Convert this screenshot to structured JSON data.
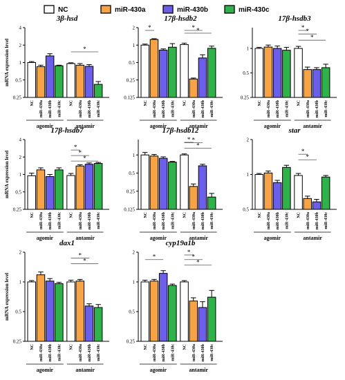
{
  "legend": [
    {
      "name": "NC",
      "color": "#ffffff"
    },
    {
      "name": "miR-430a",
      "color": "#f5a344"
    },
    {
      "name": "miR-430b",
      "color": "#6b5ee8"
    },
    {
      "name": "miR-430c",
      "color": "#2fb24a"
    }
  ],
  "chart_data": [
    {
      "type": "bar",
      "title": "3β-hsd",
      "ylabel": "mRNA expression level",
      "scale": "log2",
      "yticks": [
        "0.25",
        "0.5",
        "1",
        "2",
        "4"
      ],
      "ylim": [
        0.25,
        4
      ],
      "categories": [
        "NC",
        "miR-430a",
        "miR-430b",
        "miR-430c",
        "NC",
        "miR-430a",
        "miR-430b",
        "miR-430c"
      ],
      "groups": [
        "agomir",
        "antamir"
      ],
      "values": [
        1.0,
        0.85,
        1.3,
        0.88,
        0.96,
        0.9,
        0.86,
        0.42
      ],
      "errors": [
        0.04,
        0.05,
        0.12,
        0.02,
        0.03,
        0.06,
        0.06,
        0.05
      ],
      "significance": [
        "*"
      ]
    },
    {
      "type": "bar",
      "title": "17β-hsdb2",
      "ylabel": "",
      "scale": "log2",
      "yticks": [
        "0.125",
        "0.25",
        "0.5",
        "1",
        "2"
      ],
      "ylim": [
        0.125,
        2
      ],
      "categories": [
        "NC",
        "miR-430a",
        "miR-430b",
        "miR-430c",
        "NC",
        "miR-430a",
        "miR-430b",
        "miR-430c"
      ],
      "groups": [
        "agomir",
        "antamir"
      ],
      "values": [
        1.0,
        1.25,
        0.82,
        0.92,
        1.02,
        0.26,
        0.6,
        0.88
      ],
      "errors": [
        0.04,
        0.04,
        0.04,
        0.14,
        0.06,
        0.01,
        0.08,
        0.08
      ],
      "significance": [
        "*",
        "*",
        "*"
      ]
    },
    {
      "type": "bar",
      "title": "17β-hsdb3",
      "ylabel": "",
      "scale": "log2",
      "yticks": [
        "0.25",
        "0.5",
        "1"
      ],
      "ylim": [
        0.25,
        1.8
      ],
      "categories": [
        "NC",
        "miR-430a",
        "miR-430b",
        "miR-430c",
        "NC",
        "miR-430a",
        "miR-430b",
        "miR-430c"
      ],
      "groups": [
        "agomir",
        "antamir"
      ],
      "values": [
        1.0,
        1.04,
        1.0,
        0.95,
        1.0,
        0.55,
        0.55,
        0.58
      ],
      "errors": [
        0.03,
        0.06,
        0.07,
        0.08,
        0.06,
        0.04,
        0.03,
        0.06
      ],
      "significance": [
        "*",
        "*",
        "*"
      ]
    },
    {
      "type": "bar",
      "title": "17β-hsdb7",
      "ylabel": "mRNA expression level",
      "scale": "log2",
      "yticks": [
        "0.25",
        "0.5",
        "1",
        "2",
        "4"
      ],
      "ylim": [
        0.25,
        4
      ],
      "categories": [
        "NC",
        "miR-430a",
        "miR-430b",
        "miR-430c",
        "NC",
        "miR-430a",
        "miR-430b",
        "miR-430c"
      ],
      "groups": [
        "agomir",
        "antamir"
      ],
      "values": [
        0.95,
        1.2,
        0.92,
        1.2,
        0.96,
        1.4,
        1.5,
        1.55
      ],
      "errors": [
        0.1,
        0.1,
        0.08,
        0.1,
        0.08,
        0.07,
        0.08,
        0.06
      ],
      "significance": [
        "*",
        "*",
        "*"
      ]
    },
    {
      "type": "bar",
      "title": "17β-hsdb12",
      "ylabel": "",
      "scale": "log2",
      "yticks": [
        "0.125",
        "0.25",
        "0.5",
        "1"
      ],
      "ylim": [
        0.125,
        1.8
      ],
      "categories": [
        "NC",
        "miR-430a",
        "miR-430b",
        "miR-430c",
        "NC",
        "miR-430a",
        "miR-430b",
        "miR-430c"
      ],
      "groups": [
        "agomir",
        "antamir"
      ],
      "values": [
        1.0,
        0.96,
        0.88,
        0.76,
        1.0,
        0.3,
        0.66,
        0.2
      ],
      "errors": [
        0.1,
        0.06,
        0.05,
        0.02,
        0.04,
        0.03,
        0.04,
        0.03
      ],
      "significance": [
        "*",
        "*",
        "*"
      ]
    },
    {
      "type": "bar",
      "title": "star",
      "ylabel": "",
      "scale": "log2",
      "yticks": [
        "0.5",
        "1",
        "2"
      ],
      "ylim": [
        0.5,
        2
      ],
      "categories": [
        "NC",
        "miR-430a",
        "miR-430b",
        "miR-430c",
        "NC",
        "miR-430a",
        "miR-430b",
        "miR-430c"
      ],
      "groups": [
        "agomir",
        "antamir"
      ],
      "values": [
        1.0,
        1.03,
        0.85,
        1.15,
        0.98,
        0.62,
        0.58,
        0.95
      ],
      "errors": [
        0.02,
        0.04,
        0.04,
        0.05,
        0.04,
        0.03,
        0.03,
        0.03
      ],
      "significance": [
        "*",
        "*"
      ]
    },
    {
      "type": "bar",
      "title": "dax1",
      "ylabel": "mRNA expression level",
      "scale": "log2",
      "yticks": [
        "0.25",
        "0.5",
        "1",
        "2"
      ],
      "ylim": [
        0.25,
        2
      ],
      "categories": [
        "NC",
        "miR-430a",
        "miR-430b",
        "miR-430c",
        "NC",
        "miR-430a",
        "miR-430b",
        "miR-430c"
      ],
      "groups": [
        "agomir",
        "antamir"
      ],
      "values": [
        1.0,
        1.18,
        1.02,
        0.96,
        1.0,
        1.02,
        0.57,
        0.55
      ],
      "errors": [
        0.03,
        0.08,
        0.06,
        0.03,
        0.04,
        0.04,
        0.03,
        0.04
      ],
      "significance": [
        "*",
        "*"
      ]
    },
    {
      "type": "bar",
      "title": "cyp19a1b",
      "ylabel": "",
      "scale": "log2",
      "yticks": [
        "0.25",
        "0.5",
        "1",
        "2"
      ],
      "ylim": [
        0.25,
        2
      ],
      "categories": [
        "NC",
        "miR-430a",
        "miR-430b",
        "miR-430c",
        "NC",
        "miR-430a",
        "miR-430b",
        "miR-430c"
      ],
      "groups": [
        "agomir",
        "antamir"
      ],
      "values": [
        1.0,
        1.02,
        1.22,
        0.92,
        1.0,
        0.64,
        0.55,
        0.7
      ],
      "errors": [
        0.04,
        0.04,
        0.08,
        0.03,
        0.03,
        0.05,
        0.08,
        0.12
      ],
      "significance": [
        "*",
        "*",
        "*"
      ]
    }
  ]
}
